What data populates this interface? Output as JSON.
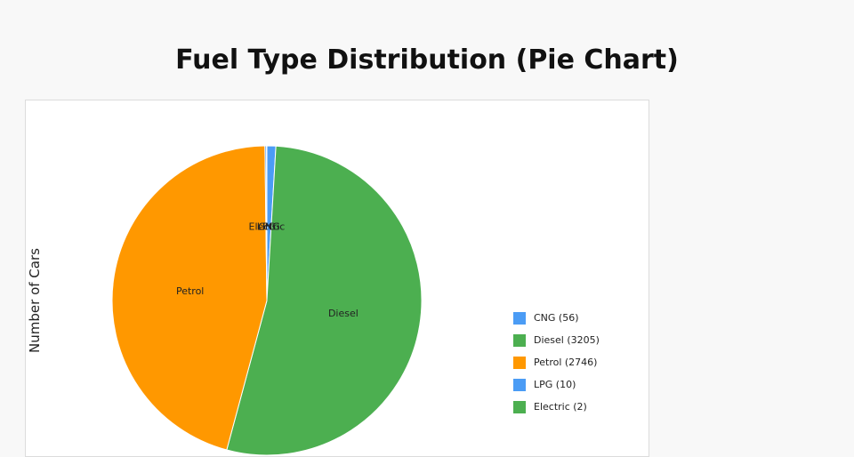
{
  "title": "Fuel Type Distribution (Pie Chart)",
  "chart_data": {
    "type": "pie",
    "title": "Fuel Type Distribution (Pie Chart)",
    "ylabel": "Number of Cars",
    "legend_position": "right",
    "slices": [
      {
        "label": "CNG",
        "value": 56,
        "color": "#4b9cf5",
        "legend": "CNG (56)"
      },
      {
        "label": "Diesel",
        "value": 3205,
        "color": "#4caf50",
        "legend": "Diesel (3205)"
      },
      {
        "label": "Petrol",
        "value": 2746,
        "color": "#ff9800",
        "legend": "Petrol (2746)"
      },
      {
        "label": "LPG",
        "value": 10,
        "color": "#4b9cf5",
        "legend": "LPG (10)"
      },
      {
        "label": "Electric",
        "value": 2,
        "color": "#4caf50",
        "legend": "Electric (2)"
      }
    ]
  }
}
